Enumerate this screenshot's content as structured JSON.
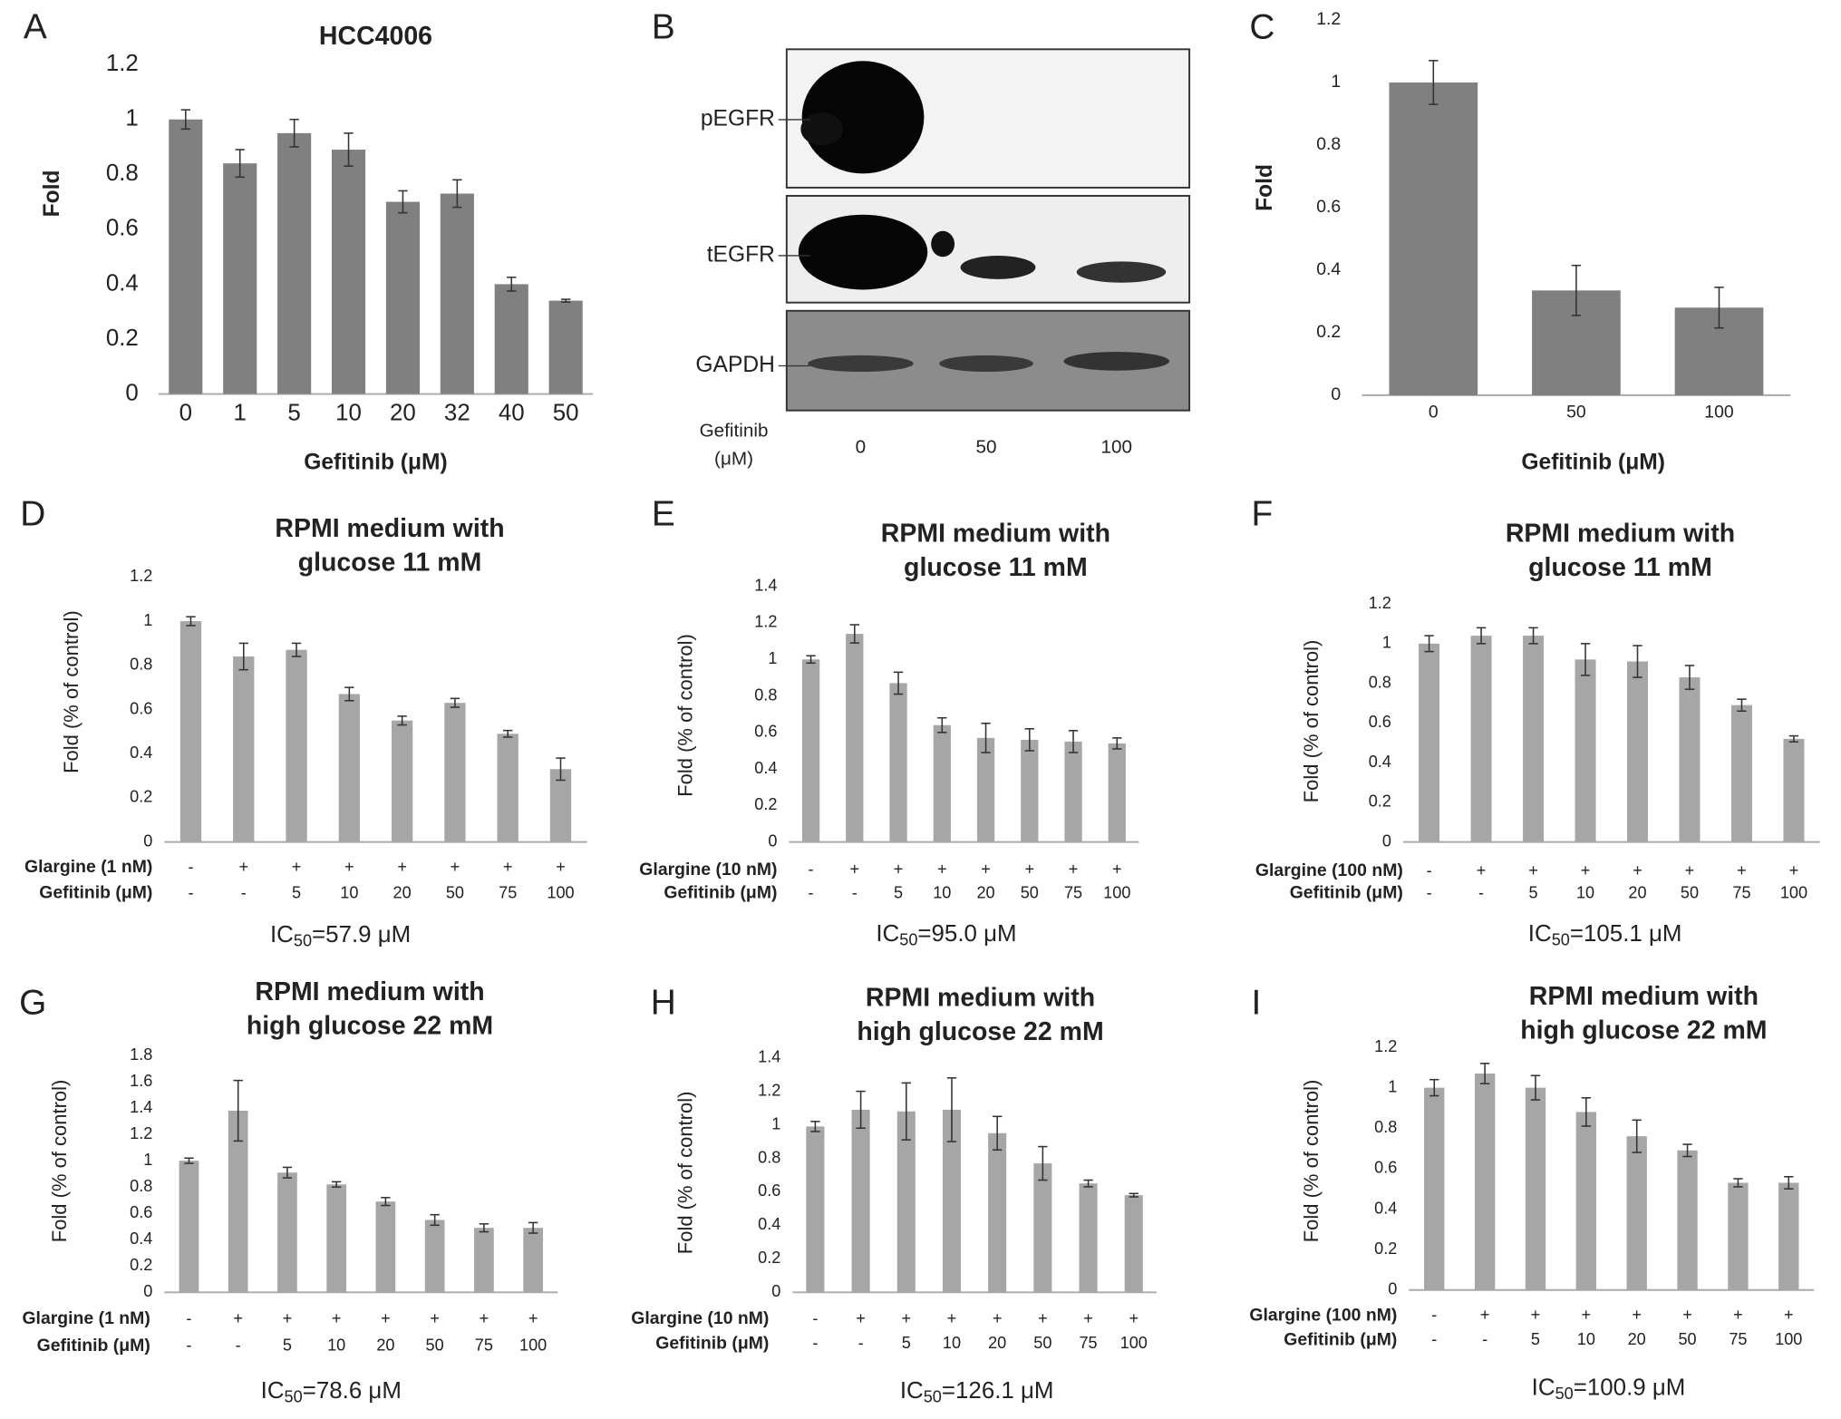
{
  "chart_data": [
    {
      "panel": "A",
      "type": "bar",
      "title": "HCC4006",
      "xlabel": "Gefitinib (μM)",
      "ylabel": "Fold",
      "color": "#808080",
      "categories": [
        "0",
        "1",
        "5",
        "10",
        "20",
        "32",
        "40",
        "50"
      ],
      "values": [
        1.0,
        0.84,
        0.95,
        0.89,
        0.7,
        0.73,
        0.4,
        0.34
      ],
      "errors": [
        0.035,
        0.05,
        0.05,
        0.06,
        0.04,
        0.05,
        0.025,
        0.005
      ],
      "ylim": [
        0,
        1.2
      ],
      "yticks": [
        0,
        0.2,
        0.4,
        0.6,
        0.8,
        1,
        1.2
      ]
    },
    {
      "panel": "B",
      "type": "blot",
      "rows": [
        "pEGFR",
        "tEGFR",
        "GAPDH"
      ],
      "lanes": [
        "0",
        "50",
        "100"
      ],
      "xlabel": [
        "Gefitinib",
        "(μM)"
      ]
    },
    {
      "panel": "C",
      "type": "bar",
      "xlabel": "Gefitinib (μM)",
      "ylabel": "Fold",
      "color": "#808080",
      "categories": [
        "0",
        "50",
        "100"
      ],
      "values": [
        1.0,
        0.335,
        0.28
      ],
      "errors": [
        0.07,
        0.08,
        0.065
      ],
      "ylim": [
        0,
        1.2
      ],
      "yticks": [
        0,
        0.2,
        0.4,
        0.6,
        0.8,
        1,
        1.2
      ]
    },
    {
      "panel": "D",
      "type": "bar",
      "title": [
        "RPMI medium with",
        "glucose  11 mM"
      ],
      "ylabel": "Fold (% of control)",
      "color": "#a6a6a6",
      "rows": [
        {
          "name": "Glargine (1 nM)",
          "labels": [
            "-",
            "+",
            "+",
            "+",
            "+",
            "+",
            "+",
            "+"
          ]
        },
        {
          "name": "Gefitinib (μM)",
          "labels": [
            "-",
            "-",
            "5",
            "10",
            "20",
            "50",
            "75",
            "100"
          ]
        }
      ],
      "values": [
        1.0,
        0.84,
        0.87,
        0.67,
        0.55,
        0.63,
        0.49,
        0.33
      ],
      "errors": [
        0.02,
        0.06,
        0.03,
        0.03,
        0.02,
        0.02,
        0.015,
        0.05
      ],
      "ylim": [
        0,
        1.2
      ],
      "yticks": [
        0,
        0.2,
        0.4,
        0.6,
        0.8,
        1,
        1.2
      ],
      "ic50": [
        "IC",
        "50",
        "=57.9 μM"
      ]
    },
    {
      "panel": "E",
      "type": "bar",
      "title": [
        "RPMI medium with",
        "glucose  11 mM"
      ],
      "ylabel": "Fold (% of control)",
      "color": "#a6a6a6",
      "rows": [
        {
          "name": "Glargine (10 nM)",
          "labels": [
            "-",
            "+",
            "+",
            "+",
            "+",
            "+",
            "+",
            "+"
          ]
        },
        {
          "name": "Gefitinib (μM)",
          "labels": [
            "-",
            "-",
            "5",
            "10",
            "20",
            "50",
            "75",
            "100"
          ]
        }
      ],
      "values": [
        1.0,
        1.14,
        0.87,
        0.64,
        0.57,
        0.56,
        0.55,
        0.54
      ],
      "errors": [
        0.02,
        0.05,
        0.06,
        0.04,
        0.08,
        0.06,
        0.06,
        0.03
      ],
      "ylim": [
        0,
        1.4
      ],
      "yticks": [
        0,
        0.2,
        0.4,
        0.6,
        0.8,
        1,
        1.2,
        1.4
      ],
      "ic50": [
        "IC",
        "50",
        "=95.0 μM"
      ]
    },
    {
      "panel": "F",
      "type": "bar",
      "title": [
        "RPMI medium with",
        "glucose  11 mM"
      ],
      "ylabel": "Fold (% of control)",
      "color": "#a6a6a6",
      "rows": [
        {
          "name": "Glargine (100 nM)",
          "labels": [
            "-",
            "+",
            "+",
            "+",
            "+",
            "+",
            "+",
            "+"
          ]
        },
        {
          "name": "Gefitinib (μM)",
          "labels": [
            "-",
            "-",
            "5",
            "10",
            "20",
            "50",
            "75",
            "100"
          ]
        }
      ],
      "values": [
        1.0,
        1.04,
        1.04,
        0.92,
        0.91,
        0.83,
        0.69,
        0.52
      ],
      "errors": [
        0.04,
        0.04,
        0.04,
        0.08,
        0.08,
        0.06,
        0.03,
        0.015
      ],
      "ylim": [
        0,
        1.2
      ],
      "yticks": [
        0,
        0.2,
        0.4,
        0.6,
        0.8,
        1,
        1.2
      ],
      "ic50": [
        "IC",
        "50",
        "=105.1 μM"
      ]
    },
    {
      "panel": "G",
      "type": "bar",
      "title": [
        "RPMI medium with",
        "high glucose  22 mM"
      ],
      "ylabel": "Fold (% of control)",
      "color": "#a6a6a6",
      "rows": [
        {
          "name": "Glargine (1 nM)",
          "labels": [
            "-",
            "+",
            "+",
            "+",
            "+",
            "+",
            "+",
            "+"
          ]
        },
        {
          "name": "Gefitinib (μM)",
          "labels": [
            "-",
            "-",
            "5",
            "10",
            "20",
            "50",
            "75",
            "100"
          ]
        }
      ],
      "values": [
        1.0,
        1.38,
        0.91,
        0.82,
        0.69,
        0.55,
        0.49,
        0.49
      ],
      "errors": [
        0.02,
        0.23,
        0.04,
        0.02,
        0.03,
        0.04,
        0.03,
        0.04
      ],
      "ylim": [
        0,
        1.8
      ],
      "yticks": [
        0,
        0.2,
        0.4,
        0.6,
        0.8,
        1,
        1.2,
        1.4,
        1.6,
        1.8
      ],
      "ic50": [
        "IC",
        "50",
        "=78.6 μM"
      ]
    },
    {
      "panel": "H",
      "type": "bar",
      "title": [
        "RPMI medium with",
        "high glucose  22 mM"
      ],
      "ylabel": "Fold (% of control)",
      "color": "#a6a6a6",
      "rows": [
        {
          "name": "Glargine (10 nM)",
          "labels": [
            "-",
            "+",
            "+",
            "+",
            "+",
            "+",
            "+",
            "+"
          ]
        },
        {
          "name": "Gefitinib (μM)",
          "labels": [
            "-",
            "-",
            "5",
            "10",
            "20",
            "50",
            "75",
            "100"
          ]
        }
      ],
      "values": [
        0.99,
        1.09,
        1.08,
        1.09,
        0.95,
        0.77,
        0.65,
        0.58
      ],
      "errors": [
        0.03,
        0.11,
        0.17,
        0.19,
        0.1,
        0.1,
        0.02,
        0.01
      ],
      "ylim": [
        0,
        1.4
      ],
      "yticks": [
        0,
        0.2,
        0.4,
        0.6,
        0.8,
        1,
        1.2,
        1.4
      ],
      "ic50": [
        "IC",
        "50",
        "=126.1 μM"
      ]
    },
    {
      "panel": "I",
      "type": "bar",
      "title": [
        "RPMI medium with",
        "high glucose  22 mM"
      ],
      "ylabel": "Fold (% of control)",
      "color": "#a6a6a6",
      "rows": [
        {
          "name": "Glargine (100 nM)",
          "labels": [
            "-",
            "+",
            "+",
            "+",
            "+",
            "+",
            "+",
            "+"
          ]
        },
        {
          "name": "Gefitinib (μM)",
          "labels": [
            "-",
            "-",
            "5",
            "10",
            "20",
            "50",
            "75",
            "100"
          ]
        }
      ],
      "values": [
        1.0,
        1.07,
        1.0,
        0.88,
        0.76,
        0.69,
        0.53,
        0.53
      ],
      "errors": [
        0.04,
        0.05,
        0.06,
        0.07,
        0.08,
        0.03,
        0.02,
        0.03
      ],
      "ylim": [
        0,
        1.2
      ],
      "yticks": [
        0,
        0.2,
        0.4,
        0.6,
        0.8,
        1,
        1.2
      ],
      "ic50": [
        "IC",
        "50",
        "=100.9 μM"
      ]
    }
  ]
}
